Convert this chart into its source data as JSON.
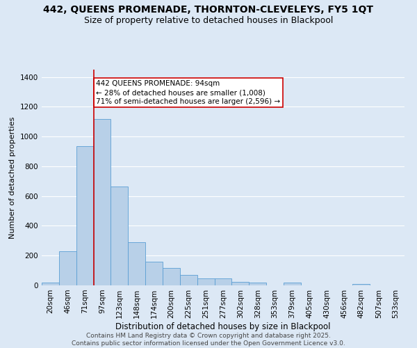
{
  "title": "442, QUEENS PROMENADE, THORNTON-CLEVELEYS, FY5 1QT",
  "subtitle": "Size of property relative to detached houses in Blackpool",
  "xlabel": "Distribution of detached houses by size in Blackpool",
  "ylabel": "Number of detached properties",
  "categories": [
    "20sqm",
    "46sqm",
    "71sqm",
    "97sqm",
    "123sqm",
    "148sqm",
    "174sqm",
    "200sqm",
    "225sqm",
    "251sqm",
    "277sqm",
    "302sqm",
    "328sqm",
    "353sqm",
    "379sqm",
    "405sqm",
    "430sqm",
    "456sqm",
    "482sqm",
    "507sqm",
    "533sqm"
  ],
  "values": [
    18,
    230,
    935,
    1120,
    665,
    290,
    160,
    115,
    70,
    45,
    45,
    22,
    18,
    0,
    18,
    0,
    0,
    0,
    10,
    0,
    0
  ],
  "bar_color": "#b8d0e8",
  "bar_edge_color": "#5a9fd4",
  "vline_color": "#cc0000",
  "annotation_text": "442 QUEENS PROMENADE: 94sqm\n← 28% of detached houses are smaller (1,008)\n71% of semi-detached houses are larger (2,596) →",
  "annotation_box_edgecolor": "#cc0000",
  "annotation_text_color": "#000000",
  "ylim": [
    0,
    1450
  ],
  "yticks": [
    0,
    200,
    400,
    600,
    800,
    1000,
    1200,
    1400
  ],
  "bg_color": "#dce8f5",
  "plot_bg_color": "#dce8f5",
  "grid_color": "#ffffff",
  "footer_text": "Contains HM Land Registry data © Crown copyright and database right 2025.\nContains public sector information licensed under the Open Government Licence v3.0.",
  "title_fontsize": 10,
  "subtitle_fontsize": 9,
  "ylabel_fontsize": 8,
  "xlabel_fontsize": 8.5,
  "tick_fontsize": 7.5,
  "annotation_fontsize": 7.5,
  "footer_fontsize": 6.5
}
